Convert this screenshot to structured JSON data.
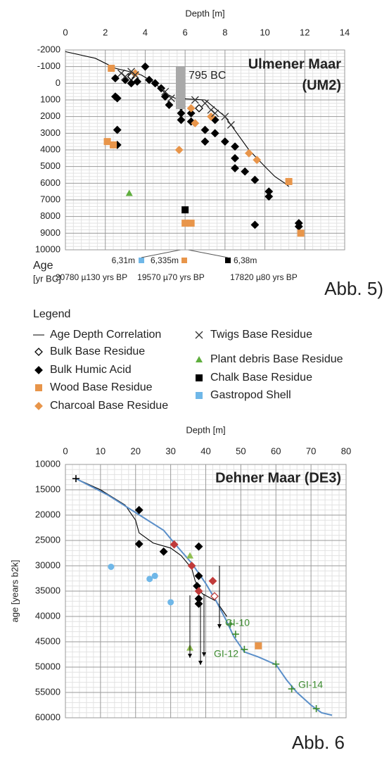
{
  "chart_data": [
    {
      "type": "scatter",
      "title": "Ulmener Maar",
      "subtitle": "(UM2)",
      "x_label": "Depth [m]",
      "xlim": [
        0,
        14
      ],
      "xticks": [
        0,
        2,
        4,
        6,
        8,
        10,
        12,
        14
      ],
      "ylim": [
        -2000,
        10000
      ],
      "yticks": [
        -2000,
        -1000,
        0,
        1000,
        2000,
        3000,
        4000,
        5000,
        6000,
        7000,
        8000,
        9000,
        10000
      ],
      "y_inverted": true,
      "grid": true,
      "legend_title": "Legend",
      "figure_label": "Abb. 5)",
      "band_label": "795 BC",
      "age_label": [
        "Age",
        "[yr BC]"
      ],
      "age_depths": [
        "6,31m",
        "6,335m",
        "6,38m"
      ],
      "age_values": [
        "20780  µ130 yrs BP",
        "19570  µ70 yrs BP",
        "17820  µ80 yrs BP"
      ],
      "series": [
        {
          "name": "Age Depth Correlation",
          "color": "#000000",
          "marker": "line",
          "x": [
            0,
            1.5,
            2.5,
            3.2,
            3.8,
            4.5,
            5,
            5.5,
            7,
            7.5,
            8,
            8.6,
            9.2,
            10,
            10.5,
            11,
            11.2
          ],
          "y": [
            -1900,
            -1500,
            -900,
            -700,
            -500,
            0,
            600,
            900,
            1000,
            1500,
            2000,
            3000,
            4000,
            5000,
            5600,
            6000,
            6200
          ]
        },
        {
          "name": "Bulk Base Residue",
          "color": "#000000",
          "marker": "diamond-open",
          "x": [
            3.3,
            6.7
          ],
          "y": [
            -400,
            1500
          ]
        },
        {
          "name": "Bulk Humic Acid",
          "color": "#000000",
          "marker": "diamond",
          "x": [
            2.5,
            2.5,
            2.6,
            2.6,
            2.6,
            3,
            3.3,
            3.6,
            4,
            4.2,
            4.5,
            4.8,
            5,
            5.2,
            5.8,
            5.8,
            5.8,
            6.3,
            6.3,
            7,
            7,
            7.5,
            7.5,
            8,
            8.5,
            8.5,
            8.5,
            9,
            9.5,
            10.2,
            10.2,
            9.5,
            11.7,
            11.7
          ],
          "y": [
            -300,
            800,
            900,
            2800,
            3700,
            -200,
            0,
            -100,
            -1000,
            -200,
            0,
            300,
            800,
            1300,
            1400,
            1800,
            2200,
            1800,
            2300,
            2800,
            3500,
            2200,
            3000,
            3500,
            3800,
            4500,
            5100,
            5300,
            5800,
            6500,
            6800,
            8500,
            8400,
            8600
          ]
        },
        {
          "name": "Wood Base Residue",
          "color": "#e8954a",
          "marker": "square",
          "x": [
            2.3,
            2.1,
            2.4,
            6,
            6.3,
            11.2,
            11.8
          ],
          "y": [
            -900,
            3500,
            3700,
            8400,
            8400,
            5900,
            9000
          ]
        },
        {
          "name": "Charcoal Base Residue",
          "color": "#e8954a",
          "marker": "diamond",
          "x": [
            3.5,
            5.7,
            6.5,
            7.3,
            9.2,
            9.6,
            6.3
          ],
          "y": [
            -600,
            4000,
            2400,
            2000,
            4200,
            4600,
            1500
          ]
        },
        {
          "name": "Twigs Base Residue",
          "color": "#333333",
          "marker": "x",
          "x": [
            2.8,
            3,
            3.3,
            3.5,
            5,
            5.3,
            6.5,
            7,
            7.3,
            7.5,
            8,
            8.3
          ],
          "y": [
            -600,
            -400,
            -700,
            -500,
            500,
            900,
            1000,
            1200,
            1600,
            1800,
            2000,
            2500
          ]
        },
        {
          "name": "Plant debris Base Residue",
          "color": "#5fae3e",
          "marker": "triangle",
          "x": [
            3.2
          ],
          "y": [
            6600
          ]
        },
        {
          "name": "Chalk Base Residue",
          "color": "#000000",
          "marker": "square",
          "x": [
            6
          ],
          "y": [
            7600
          ]
        },
        {
          "name": "Gastropod Shell",
          "color": "#6fb7e8",
          "marker": "square",
          "x": [],
          "y": []
        }
      ]
    },
    {
      "type": "scatter",
      "title": "Dehner Maar (DE3)",
      "x_label": "Depth [m]",
      "y_label": "age [years b2k]",
      "xlim": [
        0,
        80
      ],
      "xticks": [
        0,
        10,
        20,
        30,
        40,
        50,
        60,
        70,
        80
      ],
      "ylim": [
        10000,
        60000
      ],
      "yticks": [
        10000,
        15000,
        20000,
        25000,
        30000,
        35000,
        40000,
        45000,
        50000,
        55000,
        60000
      ],
      "y_inverted": true,
      "grid": true,
      "figure_label": "Abb. 6",
      "annotations": [
        "GI-10",
        "GI-12",
        "GI-14"
      ],
      "series": [
        {
          "color": "#000000",
          "marker": "line",
          "x": [
            3,
            10,
            17,
            20,
            21,
            25,
            30,
            33,
            36,
            37,
            39,
            43,
            46
          ],
          "y": [
            12800,
            15000,
            18000,
            21000,
            23500,
            25500,
            26500,
            28000,
            30500,
            33000,
            35500,
            37000,
            40000
          ]
        },
        {
          "color": "#5b8fc9",
          "marker": "line",
          "x": [
            3,
            12,
            20,
            28,
            31,
            36,
            40,
            43,
            46,
            48,
            51,
            55,
            60,
            63,
            66,
            70,
            73,
            76
          ],
          "y": [
            12800,
            16000,
            19500,
            23000,
            25500,
            29500,
            33500,
            37000,
            41000,
            44000,
            47000,
            48000,
            49500,
            52500,
            55000,
            57500,
            59000,
            59500
          ]
        },
        {
          "color": "#000000",
          "marker": "diamond",
          "x": [
            21,
            21,
            28,
            38,
            38,
            37.5,
            38,
            38
          ],
          "y": [
            19000,
            25700,
            27200,
            26200,
            32000,
            34000,
            36500,
            37500
          ]
        },
        {
          "color": "#6fb7e8",
          "marker": "circle",
          "x": [
            13,
            24,
            25.5,
            30
          ],
          "y": [
            30200,
            32600,
            32000,
            37200
          ]
        },
        {
          "color": "#8fbf50",
          "marker": "triangle",
          "x": [
            35.5,
            35.5
          ],
          "y": [
            28000,
            46200
          ]
        },
        {
          "color": "#c03a3a",
          "marker": "diamond",
          "x": [
            31,
            36,
            42,
            38
          ],
          "y": [
            25800,
            30000,
            33000,
            35000
          ]
        },
        {
          "color": "#c03a3a",
          "marker": "diamond-open",
          "x": [
            42.5
          ],
          "y": [
            36000
          ]
        },
        {
          "color": "#e8954a",
          "marker": "square",
          "x": [
            55
          ],
          "y": [
            45800
          ]
        },
        {
          "color": "#3d8c30",
          "marker": "plus",
          "x": [
            47,
            48.5,
            51,
            60,
            64.5,
            71.5
          ],
          "y": [
            41500,
            43500,
            46500,
            49400,
            54300,
            58200
          ]
        },
        {
          "color": "#000000",
          "marker": "plus",
          "x": [
            3
          ],
          "y": [
            12800
          ]
        }
      ]
    }
  ]
}
